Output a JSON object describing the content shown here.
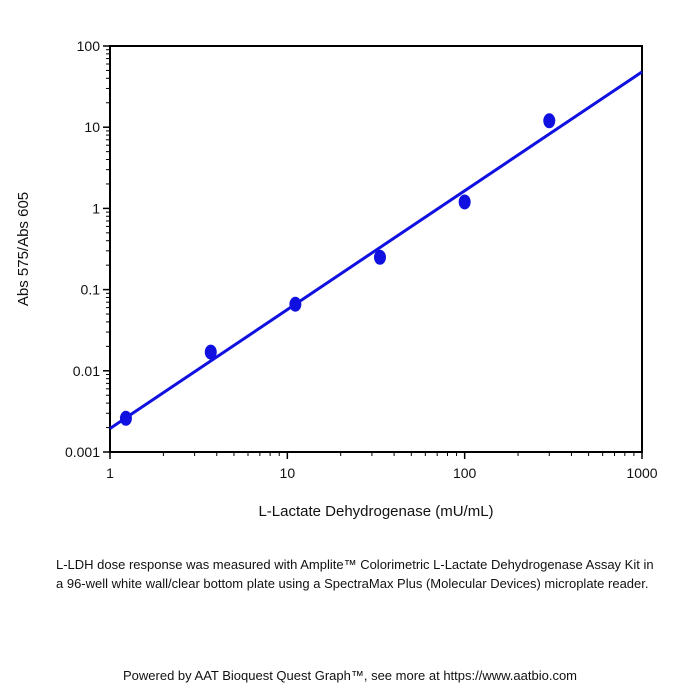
{
  "chart_data": {
    "type": "scatter",
    "title": "",
    "xlabel": "L-Lactate Dehydrogenase (mU/mL)",
    "ylabel": "Abs 575/Abs 605",
    "xscale": "log",
    "yscale": "log",
    "xlim": [
      1,
      1000
    ],
    "ylim": [
      0.001,
      100
    ],
    "x_ticks": [
      "1",
      "10",
      "100",
      "1000"
    ],
    "y_ticks": [
      "0.001",
      "0.01",
      "0.1",
      "1",
      "10",
      "100"
    ],
    "grid": false,
    "series": [
      {
        "color": "#1010e0",
        "points": [
          {
            "x": 1.23,
            "y": 0.0026
          },
          {
            "x": 3.7,
            "y": 0.017
          },
          {
            "x": 11.1,
            "y": 0.066
          },
          {
            "x": 33.3,
            "y": 0.25
          },
          {
            "x": 100,
            "y": 1.2
          },
          {
            "x": 300,
            "y": 12
          }
        ],
        "fit_line": {
          "x": [
            1,
            1000
          ],
          "y": [
            0.00195,
            48
          ]
        }
      }
    ]
  },
  "caption": "L-LDH dose response was measured with Amplite™ Colorimetric L-Lactate Dehydrogenase Assay Kit in a 96-well white wall/clear bottom plate using a SpectraMax Plus (Molecular Devices) microplate reader.",
  "footer": "Powered by AAT Bioquest Quest Graph™, see more at https://www.aatbio.com"
}
